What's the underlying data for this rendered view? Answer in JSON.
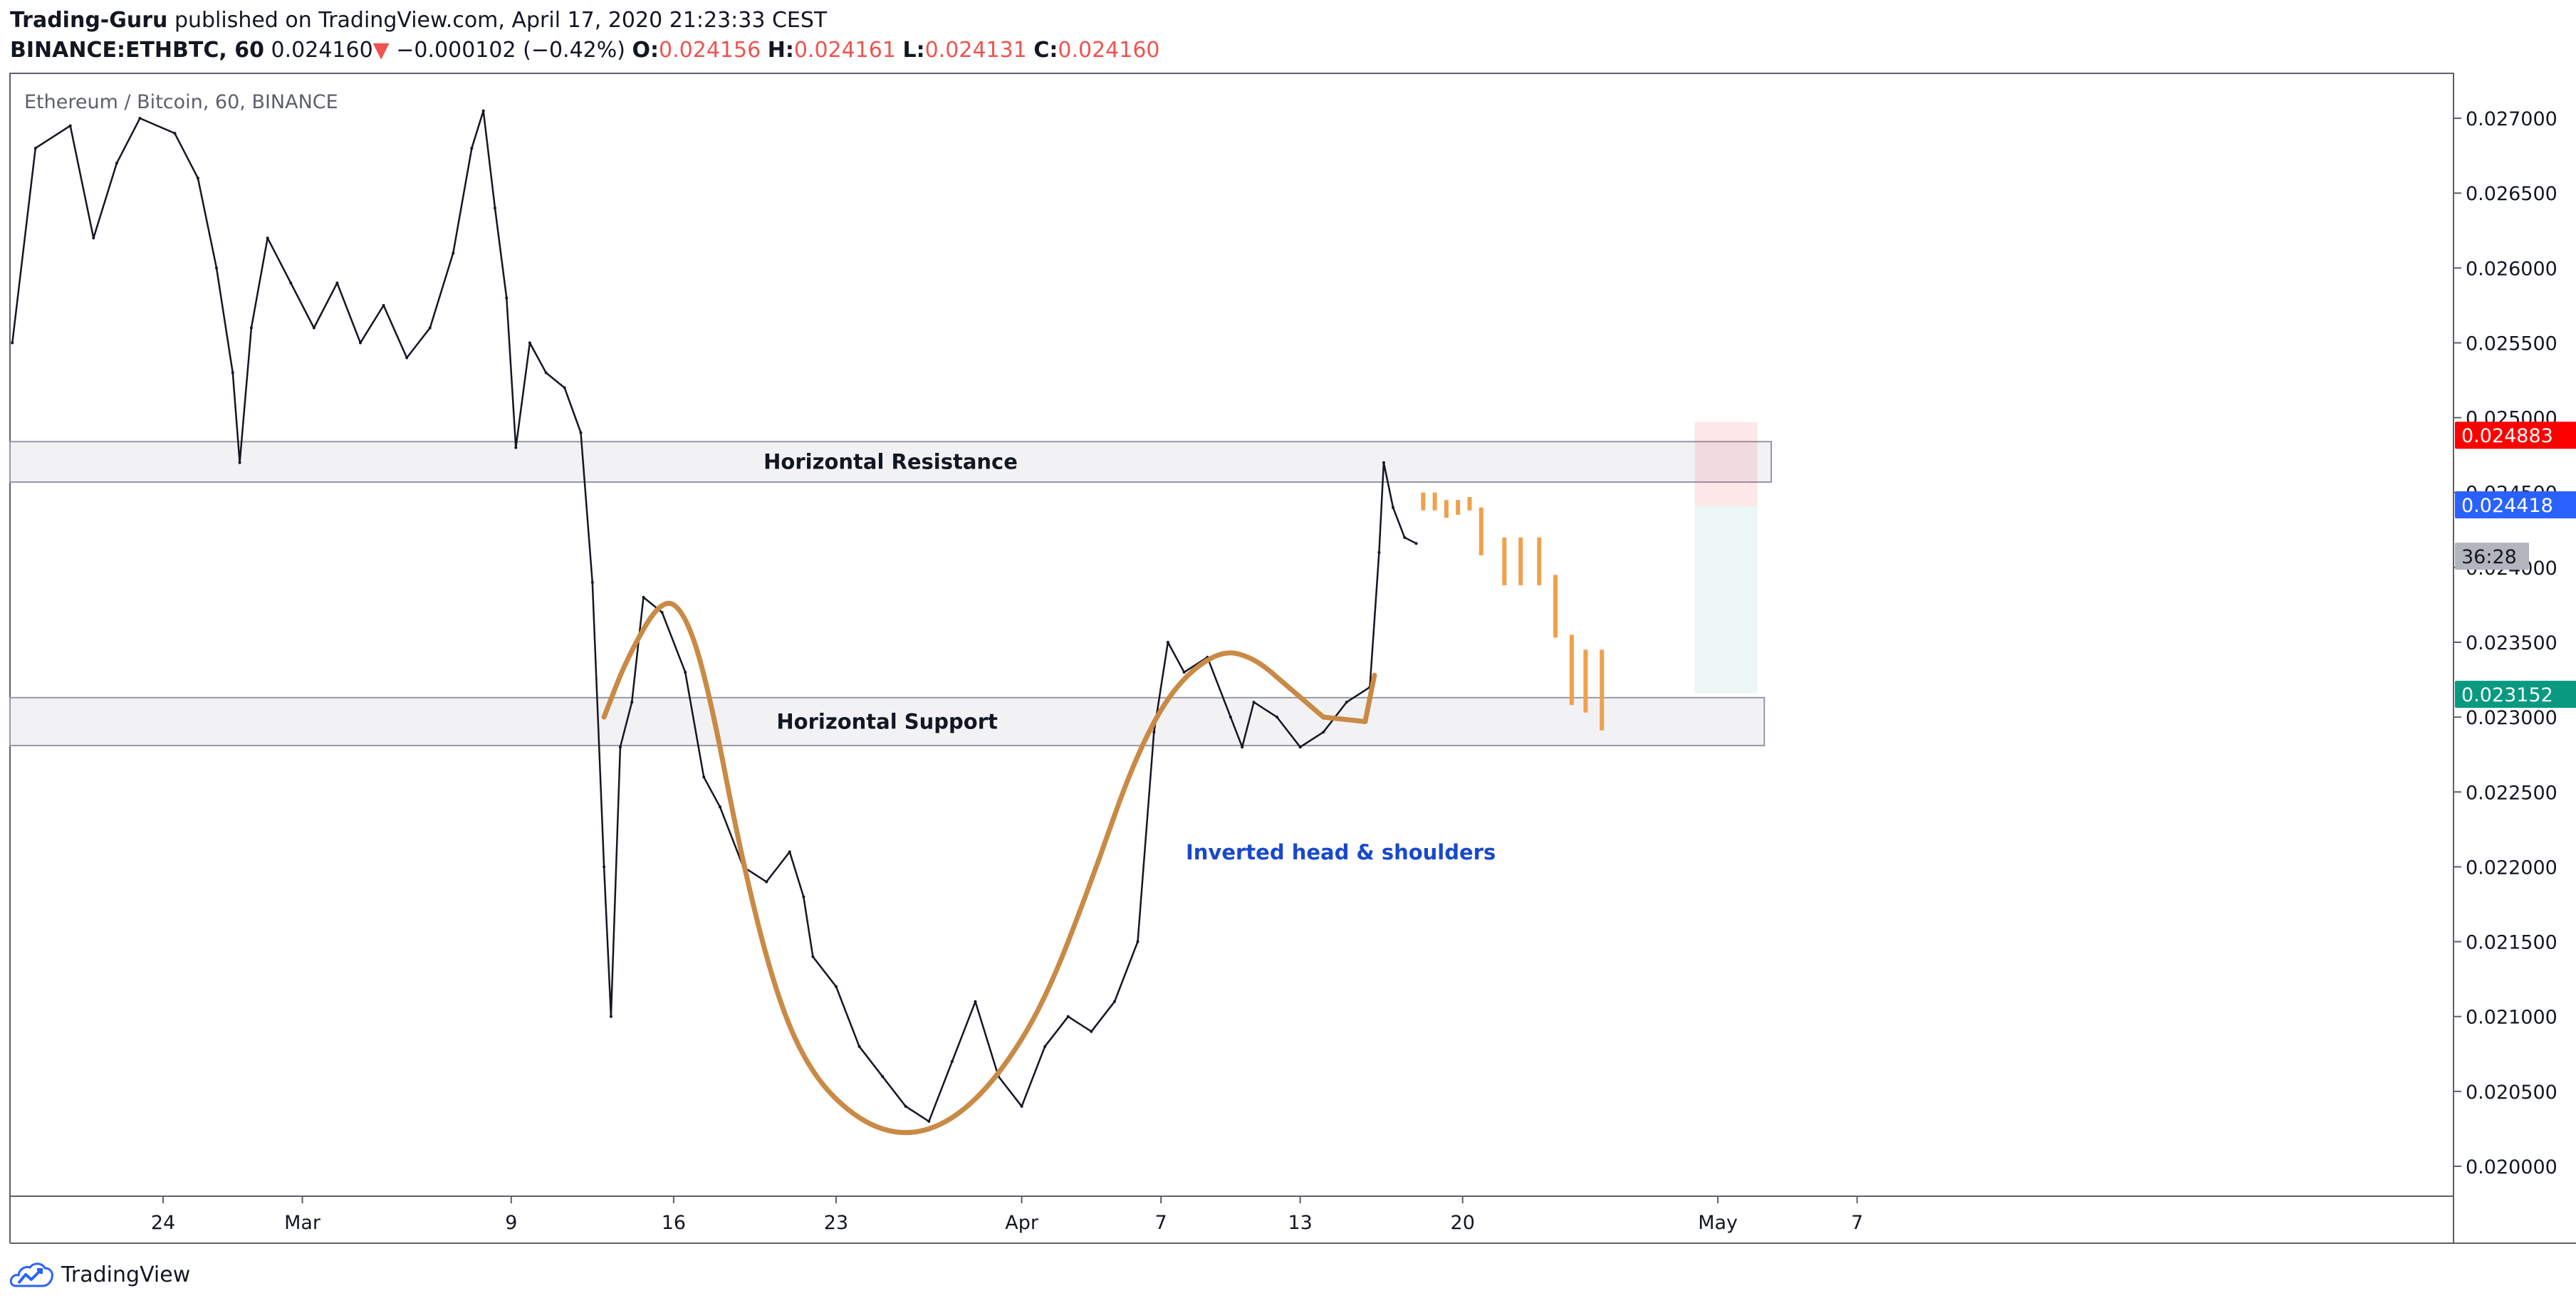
{
  "header": {
    "author": "Trading-Guru",
    "published_text": "published on TradingView.com, April 17, 2020 21:23:33 CEST",
    "symbol": "BINANCE:ETHBTC, 60",
    "last": "0.024160",
    "change_arrow": "▼",
    "change": "−0.000102 (−0.42%)",
    "o_label": "O:",
    "o_value": "0.024156",
    "h_label": "H:",
    "h_value": "0.024161",
    "l_label": "L:",
    "l_value": "0.024131",
    "c_label": "C:",
    "c_value": "0.024160"
  },
  "colors": {
    "price_up": "#ef5350",
    "target_red": "#ff0000",
    "current_blue": "#2962ff",
    "stop_green": "#089981",
    "drawing_brown": "#c98a45",
    "projection_orange": "#f0a04b",
    "annotation_blue": "#1848cc"
  },
  "chart_data": {
    "type": "line",
    "title": "Ethereum / Bitcoin, 60, BINANCE",
    "ylabel": "",
    "xlabel": "",
    "ylim": [
      0.0198,
      0.0273
    ],
    "y_ticks": [
      "0.027000",
      "0.026500",
      "0.026000",
      "0.025500",
      "0.025000",
      "0.024500",
      "0.024000",
      "0.023500",
      "0.023000",
      "0.022500",
      "0.022000",
      "0.021500",
      "0.021000",
      "0.020500",
      "0.020000"
    ],
    "x_ticks": [
      {
        "label": "24",
        "day": 24
      },
      {
        "label": "Mar",
        "day": 30
      },
      {
        "label": "9",
        "day": 39
      },
      {
        "label": "16",
        "day": 46
      },
      {
        "label": "23",
        "day": 53
      },
      {
        "label": "Apr",
        "day": 61
      },
      {
        "label": "7",
        "day": 67
      },
      {
        "label": "13",
        "day": 73
      },
      {
        "label": "20",
        "day": 80
      },
      {
        "label": "May",
        "day": 91
      },
      {
        "label": "7",
        "day": 97
      }
    ],
    "xlim": [
      17.4,
      122.7
    ],
    "price_series": [
      {
        "day": 17.5,
        "price": 0.0255
      },
      {
        "day": 18.5,
        "price": 0.0268
      },
      {
        "day": 20,
        "price": 0.02695
      },
      {
        "day": 21,
        "price": 0.0262
      },
      {
        "day": 22,
        "price": 0.0267
      },
      {
        "day": 23,
        "price": 0.027
      },
      {
        "day": 24.5,
        "price": 0.0269
      },
      {
        "day": 25.5,
        "price": 0.0266
      },
      {
        "day": 26.3,
        "price": 0.026
      },
      {
        "day": 27,
        "price": 0.0253
      },
      {
        "day": 27.3,
        "price": 0.0247
      },
      {
        "day": 27.8,
        "price": 0.0256
      },
      {
        "day": 28.5,
        "price": 0.0262
      },
      {
        "day": 29.5,
        "price": 0.0259
      },
      {
        "day": 30.5,
        "price": 0.0256
      },
      {
        "day": 31.5,
        "price": 0.0259
      },
      {
        "day": 32.5,
        "price": 0.0255
      },
      {
        "day": 33.5,
        "price": 0.02575
      },
      {
        "day": 34.5,
        "price": 0.0254
      },
      {
        "day": 35.5,
        "price": 0.0256
      },
      {
        "day": 36.5,
        "price": 0.0261
      },
      {
        "day": 37.3,
        "price": 0.0268
      },
      {
        "day": 37.8,
        "price": 0.02705
      },
      {
        "day": 38.3,
        "price": 0.0264
      },
      {
        "day": 38.8,
        "price": 0.0258
      },
      {
        "day": 39.2,
        "price": 0.0248
      },
      {
        "day": 39.8,
        "price": 0.0255
      },
      {
        "day": 40.5,
        "price": 0.0253
      },
      {
        "day": 41.3,
        "price": 0.0252
      },
      {
        "day": 42,
        "price": 0.0249
      },
      {
        "day": 42.5,
        "price": 0.0239
      },
      {
        "day": 43,
        "price": 0.022
      },
      {
        "day": 43.3,
        "price": 0.021
      },
      {
        "day": 43.7,
        "price": 0.0228
      },
      {
        "day": 44.2,
        "price": 0.0231
      },
      {
        "day": 44.7,
        "price": 0.0238
      },
      {
        "day": 45.5,
        "price": 0.0237
      },
      {
        "day": 46.5,
        "price": 0.0233
      },
      {
        "day": 47.3,
        "price": 0.0226
      },
      {
        "day": 48,
        "price": 0.0224
      },
      {
        "day": 49,
        "price": 0.022
      },
      {
        "day": 50,
        "price": 0.0219
      },
      {
        "day": 51,
        "price": 0.0221
      },
      {
        "day": 51.6,
        "price": 0.0218
      },
      {
        "day": 52,
        "price": 0.0214
      },
      {
        "day": 53,
        "price": 0.0212
      },
      {
        "day": 54,
        "price": 0.0208
      },
      {
        "day": 55,
        "price": 0.0206
      },
      {
        "day": 56,
        "price": 0.0204
      },
      {
        "day": 57,
        "price": 0.0203
      },
      {
        "day": 58,
        "price": 0.0207
      },
      {
        "day": 59,
        "price": 0.0211
      },
      {
        "day": 60,
        "price": 0.0206
      },
      {
        "day": 61,
        "price": 0.0204
      },
      {
        "day": 62,
        "price": 0.0208
      },
      {
        "day": 63,
        "price": 0.021
      },
      {
        "day": 64,
        "price": 0.0209
      },
      {
        "day": 65,
        "price": 0.0211
      },
      {
        "day": 66,
        "price": 0.0215
      },
      {
        "day": 66.7,
        "price": 0.0229
      },
      {
        "day": 67.3,
        "price": 0.0235
      },
      {
        "day": 68,
        "price": 0.0233
      },
      {
        "day": 69,
        "price": 0.0234
      },
      {
        "day": 70,
        "price": 0.023
      },
      {
        "day": 70.5,
        "price": 0.0228
      },
      {
        "day": 71,
        "price": 0.0231
      },
      {
        "day": 72,
        "price": 0.023
      },
      {
        "day": 73,
        "price": 0.0228
      },
      {
        "day": 74,
        "price": 0.0229
      },
      {
        "day": 75,
        "price": 0.0231
      },
      {
        "day": 76,
        "price": 0.0232
      },
      {
        "day": 76.4,
        "price": 0.0241
      },
      {
        "day": 76.6,
        "price": 0.0247
      },
      {
        "day": 77,
        "price": 0.0244
      },
      {
        "day": 77.5,
        "price": 0.0242
      },
      {
        "day": 78,
        "price": 0.02416
      }
    ],
    "zones": [
      {
        "label": "Horizontal Resistance",
        "top": 0.02484,
        "bottom": 0.02457,
        "day_from": 17.4,
        "day_to": 93.3
      },
      {
        "label": "Horizontal Support",
        "top": 0.02313,
        "bottom": 0.02281,
        "day_from": 17.4,
        "day_to": 93.0
      }
    ],
    "pattern_label": "Inverted head & shoulders",
    "hs_curve": [
      {
        "day": 43.0,
        "price": 0.023
      },
      {
        "day": 44.0,
        "price": 0.0234
      },
      {
        "day": 45.5,
        "price": 0.0238
      },
      {
        "day": 46.5,
        "price": 0.0237
      },
      {
        "day": 47.5,
        "price": 0.0232
      },
      {
        "day": 49.0,
        "price": 0.022
      },
      {
        "day": 50.5,
        "price": 0.0211
      },
      {
        "day": 52.0,
        "price": 0.0206
      },
      {
        "day": 54.0,
        "price": 0.0203
      },
      {
        "day": 56.0,
        "price": 0.0202
      },
      {
        "day": 58.0,
        "price": 0.0203
      },
      {
        "day": 60.0,
        "price": 0.0206
      },
      {
        "day": 62.0,
        "price": 0.0211
      },
      {
        "day": 64.0,
        "price": 0.0219
      },
      {
        "day": 65.8,
        "price": 0.0227
      },
      {
        "day": 67.5,
        "price": 0.0232
      },
      {
        "day": 69.5,
        "price": 0.02345
      },
      {
        "day": 71.0,
        "price": 0.0234
      },
      {
        "day": 72.5,
        "price": 0.0232
      },
      {
        "day": 74.0,
        "price": 0.023
      }
    ],
    "projection_bars": [
      {
        "day": 78.3,
        "high": 0.0245,
        "low": 0.0244
      },
      {
        "day": 78.8,
        "high": 0.0245,
        "low": 0.0244
      },
      {
        "day": 79.3,
        "high": 0.02445,
        "low": 0.02435
      },
      {
        "day": 79.8,
        "high": 0.02445,
        "low": 0.02437
      },
      {
        "day": 80.3,
        "high": 0.02447,
        "low": 0.0244
      },
      {
        "day": 80.8,
        "high": 0.0244,
        "low": 0.0241
      },
      {
        "day": 81.8,
        "high": 0.0242,
        "low": 0.0239
      },
      {
        "day": 82.5,
        "high": 0.0242,
        "low": 0.0239
      },
      {
        "day": 83.3,
        "high": 0.0242,
        "low": 0.0239
      },
      {
        "day": 84.0,
        "high": 0.02395,
        "low": 0.02355
      },
      {
        "day": 84.7,
        "high": 0.02355,
        "low": 0.0231
      },
      {
        "day": 85.3,
        "high": 0.02345,
        "low": 0.02305
      },
      {
        "day": 86.0,
        "high": 0.02345,
        "low": 0.02293
      }
    ],
    "position_box": {
      "day_from": 90.0,
      "day_to": 92.7,
      "top": 0.02497,
      "entry": 0.02441,
      "bottom": 0.02316
    },
    "price_labels": [
      {
        "value": "0.024883",
        "price": 0.024883,
        "color": "#ff0000",
        "text_color": "#ffffff"
      },
      {
        "value": "0.024418",
        "price": 0.024418,
        "color": "#2962ff",
        "text_color": "#ffffff"
      },
      {
        "value": "36:28",
        "price": 0.02417,
        "color": "#b2b5be",
        "text_color": "#131722"
      },
      {
        "value": "0.023152",
        "price": 0.023152,
        "color": "#089981",
        "text_color": "#ffffff"
      }
    ]
  },
  "footer": {
    "brand": "TradingView",
    "logo_icon": "tradingview-cloud-logo-icon"
  }
}
